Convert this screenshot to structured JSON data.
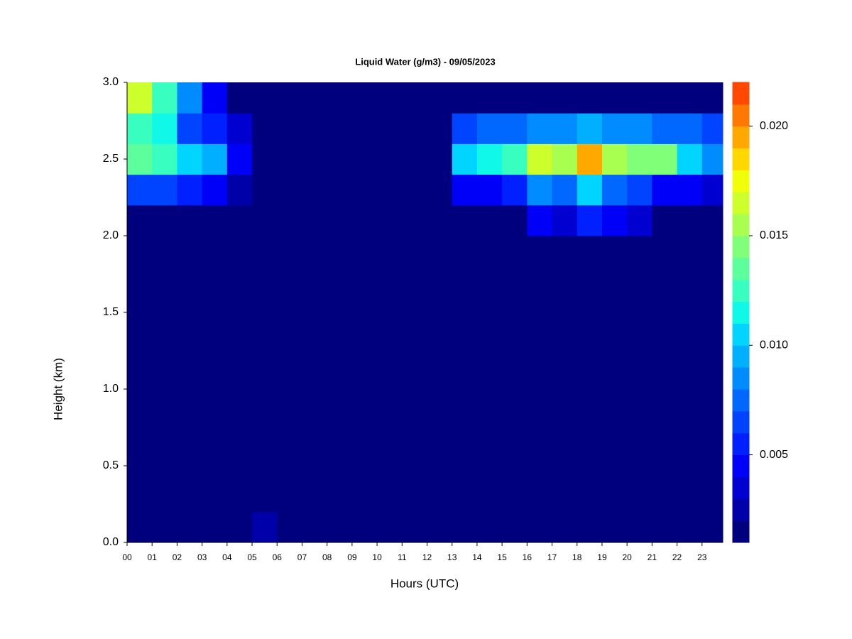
{
  "chart_data": {
    "type": "heatmap",
    "title": "Liquid Water (g/m3) - 09/05/2023",
    "xlabel": "Hours (UTC)",
    "ylabel": "Height (km)",
    "x": [
      0,
      1,
      2,
      3,
      4,
      5,
      6,
      7,
      8,
      9,
      10,
      11,
      12,
      13,
      14,
      15,
      16,
      17,
      18,
      19,
      20,
      21,
      22,
      23
    ],
    "y": [
      0,
      0.2,
      0.4,
      0.6,
      0.8,
      1.0,
      1.2,
      1.4,
      1.6,
      1.8,
      2.0,
      2.2,
      2.4,
      2.6,
      2.8
    ],
    "xlim": [
      0,
      23.83
    ],
    "ylim": [
      0,
      3
    ],
    "xticks": [
      {
        "value": 0,
        "label": "00"
      },
      {
        "value": 1,
        "label": "01"
      },
      {
        "value": 2,
        "label": "02"
      },
      {
        "value": 3,
        "label": "03"
      },
      {
        "value": 4,
        "label": "04"
      },
      {
        "value": 5,
        "label": "05"
      },
      {
        "value": 6,
        "label": "06"
      },
      {
        "value": 7,
        "label": "07"
      },
      {
        "value": 8,
        "label": "08"
      },
      {
        "value": 9,
        "label": "09"
      },
      {
        "value": 10,
        "label": "10"
      },
      {
        "value": 11,
        "label": "11"
      },
      {
        "value": 12,
        "label": "12"
      },
      {
        "value": 13,
        "label": "13"
      },
      {
        "value": 14,
        "label": "14"
      },
      {
        "value": 15,
        "label": "15"
      },
      {
        "value": 16,
        "label": "16"
      },
      {
        "value": 17,
        "label": "17"
      },
      {
        "value": 18,
        "label": "18"
      },
      {
        "value": 19,
        "label": "19"
      },
      {
        "value": 20,
        "label": "20"
      },
      {
        "value": 21,
        "label": "21"
      },
      {
        "value": 22,
        "label": "22"
      },
      {
        "value": 23,
        "label": "23"
      }
    ],
    "yticks": [
      {
        "value": 0,
        "label": "0.0"
      },
      0.5,
      {
        "value": 1,
        "label": "1.0"
      },
      1.5,
      {
        "value": 2,
        "label": "2.0"
      },
      2.5,
      {
        "value": 3,
        "label": "3.0"
      }
    ],
    "zlim": [
      0.001,
      0.022
    ],
    "zticks": [
      0.005,
      {
        "value": 0.01,
        "label": "0.010"
      },
      0.015,
      {
        "value": 0.02,
        "label": "0.020"
      }
    ],
    "colors": [
      "#00007f",
      "#0000a8",
      "#0000d0",
      "#0000f8",
      "#0020ff",
      "#0044ff",
      "#0068ff",
      "#008cff",
      "#00b0ff",
      "#00d4ff",
      "#10f8e8",
      "#38ffc0",
      "#5cff9c",
      "#80ff78",
      "#a8ff50",
      "#ccff2c",
      "#f0ff08",
      "#ffd800",
      "#ffa800",
      "#ff7800",
      "#ff4800"
    ],
    "z": [
      [
        0.001,
        0.001,
        0.001,
        0.001,
        0.001,
        0.002,
        0.001,
        0.001,
        0.001,
        0.001,
        0.001,
        0.001,
        0.001,
        0.001,
        0.001,
        0.001,
        0.001,
        0.001,
        0.001,
        0.001,
        0.001,
        0.001,
        0.001,
        0.001
      ],
      [
        0.001,
        0.001,
        0.001,
        0.001,
        0.001,
        0.001,
        0.001,
        0.001,
        0.001,
        0.001,
        0.001,
        0.001,
        0.001,
        0.001,
        0.001,
        0.001,
        0.001,
        0.001,
        0.001,
        0.001,
        0.001,
        0.001,
        0.001,
        0.001
      ],
      [
        0.001,
        0.001,
        0.001,
        0.001,
        0.001,
        0.001,
        0.001,
        0.001,
        0.001,
        0.001,
        0.001,
        0.001,
        0.001,
        0.001,
        0.001,
        0.001,
        0.001,
        0.001,
        0.001,
        0.001,
        0.001,
        0.001,
        0.001,
        0.001
      ],
      [
        0.001,
        0.001,
        0.001,
        0.001,
        0.001,
        0.001,
        0.001,
        0.001,
        0.001,
        0.001,
        0.001,
        0.001,
        0.001,
        0.001,
        0.001,
        0.001,
        0.001,
        0.001,
        0.001,
        0.001,
        0.001,
        0.001,
        0.001,
        0.001
      ],
      [
        0.001,
        0.001,
        0.001,
        0.001,
        0.001,
        0.001,
        0.001,
        0.001,
        0.001,
        0.001,
        0.001,
        0.001,
        0.001,
        0.001,
        0.001,
        0.001,
        0.001,
        0.001,
        0.001,
        0.001,
        0.001,
        0.001,
        0.001,
        0.001
      ],
      [
        0.001,
        0.001,
        0.001,
        0.001,
        0.001,
        0.001,
        0.001,
        0.001,
        0.001,
        0.001,
        0.001,
        0.001,
        0.001,
        0.001,
        0.001,
        0.001,
        0.001,
        0.001,
        0.001,
        0.001,
        0.001,
        0.001,
        0.001,
        0.001
      ],
      [
        0.001,
        0.001,
        0.001,
        0.001,
        0.001,
        0.001,
        0.001,
        0.001,
        0.001,
        0.001,
        0.001,
        0.001,
        0.001,
        0.001,
        0.001,
        0.001,
        0.001,
        0.001,
        0.001,
        0.001,
        0.001,
        0.001,
        0.001,
        0.001
      ],
      [
        0.001,
        0.001,
        0.001,
        0.001,
        0.001,
        0.001,
        0.001,
        0.001,
        0.001,
        0.001,
        0.001,
        0.001,
        0.001,
        0.001,
        0.001,
        0.001,
        0.001,
        0.001,
        0.001,
        0.001,
        0.001,
        0.001,
        0.001,
        0.001
      ],
      [
        0.001,
        0.001,
        0.001,
        0.001,
        0.001,
        0.001,
        0.001,
        0.001,
        0.001,
        0.001,
        0.001,
        0.001,
        0.001,
        0.001,
        0.001,
        0.001,
        0.001,
        0.001,
        0.001,
        0.001,
        0.001,
        0.001,
        0.001,
        0.001
      ],
      [
        0.001,
        0.001,
        0.001,
        0.001,
        0.001,
        0.001,
        0.001,
        0.001,
        0.001,
        0.001,
        0.001,
        0.001,
        0.001,
        0.001,
        0.001,
        0.001,
        0.001,
        0.001,
        0.001,
        0.001,
        0.001,
        0.001,
        0.001,
        0.001
      ],
      [
        0.001,
        0.001,
        0.001,
        0.001,
        0.001,
        0.001,
        0.001,
        0.001,
        0.001,
        0.001,
        0.001,
        0.001,
        0.001,
        0.001,
        0.001,
        0.001,
        0.004,
        0.003,
        0.005,
        0.004,
        0.003,
        0.001,
        0.001,
        0.001
      ],
      [
        0.006,
        0.006,
        0.005,
        0.004,
        0.002,
        0.001,
        0.001,
        0.001,
        0.001,
        0.001,
        0.001,
        0.001,
        0.001,
        0.004,
        0.004,
        0.005,
        0.008,
        0.007,
        0.01,
        0.007,
        0.006,
        0.004,
        0.004,
        0.003
      ],
      [
        0.013,
        0.012,
        0.01,
        0.009,
        0.004,
        0.001,
        0.001,
        0.001,
        0.001,
        0.001,
        0.001,
        0.001,
        0.001,
        0.01,
        0.011,
        0.012,
        0.016,
        0.015,
        0.019,
        0.015,
        0.014,
        0.014,
        0.01,
        0.008
      ],
      [
        0.012,
        0.011,
        0.006,
        0.005,
        0.003,
        0.001,
        0.001,
        0.001,
        0.001,
        0.001,
        0.001,
        0.001,
        0.001,
        0.006,
        0.007,
        0.007,
        0.008,
        0.008,
        0.009,
        0.008,
        0.008,
        0.007,
        0.007,
        0.006
      ],
      [
        0.016,
        0.012,
        0.008,
        0.004,
        0.001,
        0.001,
        0.001,
        0.001,
        0.001,
        0.001,
        0.001,
        0.001,
        0.001,
        0.001,
        0.001,
        0.001,
        0.001,
        0.001,
        0.001,
        0.001,
        0.001,
        0.001,
        0.001,
        0.001
      ]
    ]
  }
}
